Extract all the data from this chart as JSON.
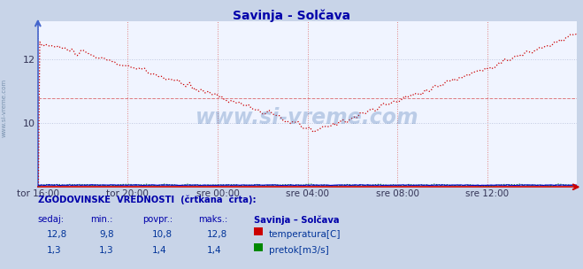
{
  "title": "Savinja - Solčava",
  "outer_bg": "#c8d4e8",
  "plot_bg": "#f0f4ff",
  "grid_v_color": "#e08080",
  "grid_h_color": "#c0c8e0",
  "hist_line_color": "#e08080",
  "temp_color": "#cc0000",
  "flow_color": "#008800",
  "height_color": "#0000cc",
  "axis_color": "#4466cc",
  "xaxis_color": "#cc0000",
  "title_color": "#0000aa",
  "watermark_color": "#3366aa",
  "footer_header_color": "#0000aa",
  "footer_value_color": "#003399",
  "x_tick_labels": [
    "tor 16:00",
    "tor 20:00",
    "sre 00:00",
    "sre 04:00",
    "sre 08:00",
    "sre 12:00"
  ],
  "x_tick_positions": [
    0,
    48,
    96,
    144,
    192,
    240
  ],
  "total_points": 289,
  "y_ticks": [
    10,
    12
  ],
  "ylim_min": 8.0,
  "ylim_max": 13.2,
  "watermark": "www.si-vreme.com",
  "side_label": "www.si-vreme.com",
  "footer_text": "ZGODOVINSKE  VREDNOSTI  (črtkana  črta):",
  "col_headers": [
    "sedaj:",
    "min.:",
    "povpr.:",
    "maks.:",
    "Savinja – Solčava"
  ],
  "temp_row": [
    "12,8",
    "9,8",
    "10,8",
    "12,8"
  ],
  "flow_row": [
    "1,3",
    "1,3",
    "1,4",
    "1,4"
  ],
  "temp_label": "temperatura[C]",
  "flow_label": "pretok[m3/s]",
  "temp_icon_color": "#cc0000",
  "flow_icon_color": "#008800"
}
